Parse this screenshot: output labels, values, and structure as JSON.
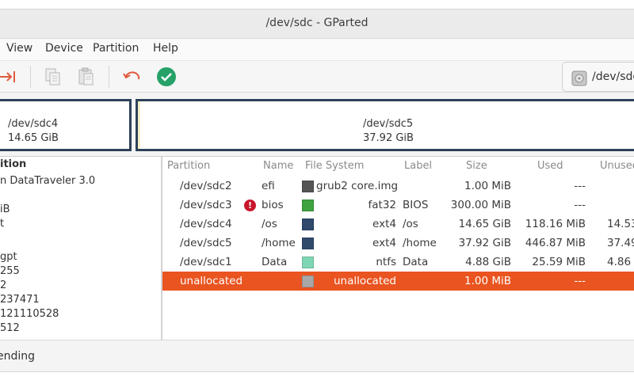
{
  "window": {
    "title": "/dev/sdc - GParted"
  },
  "menubar": {
    "items": [
      "View",
      "Device",
      "Partition",
      "Help"
    ]
  },
  "toolbar": {
    "icons": [
      "apply-arrow-icon",
      "copy-icon",
      "paste-icon",
      "undo-icon",
      "apply-check-icon"
    ],
    "colors": {
      "undo": "#e05a3c",
      "apply": "#26a269"
    },
    "device_selector": "/dev/sdc"
  },
  "disk_map": {
    "partitions": [
      {
        "name": "/dev/sdc4",
        "size": "14.65 GiB"
      },
      {
        "name": "/dev/sdc5",
        "size": "37.92 GiB"
      }
    ]
  },
  "device_info": {
    "rows": [
      "ition",
      "n DataTraveler 3.0",
      "",
      "iB",
      "t",
      "",
      "gpt",
      "255",
      "2",
      "237471",
      "121110528",
      "512"
    ]
  },
  "partition_table": {
    "columns": [
      "Partition",
      "Name",
      "File System",
      "Label",
      "Size",
      "Used",
      "Unused"
    ],
    "rows": [
      {
        "partition": "/dev/sdc2",
        "name": "efi",
        "swatch": "#555555",
        "fs": "grub2 core.img",
        "label": "",
        "size": "1.00 MiB",
        "used": "---",
        "unused": "",
        "warning": false
      },
      {
        "partition": "/dev/sdc3",
        "name": "bios",
        "swatch": "#3fa33f",
        "fs": "fat32",
        "label": "BIOS",
        "size": "300.00 MiB",
        "used": "---",
        "unused": "",
        "warning": true
      },
      {
        "partition": "/dev/sdc4",
        "name": "/os",
        "swatch": "#2f4a6b",
        "fs": "ext4",
        "label": "/os",
        "size": "14.65 GiB",
        "used": "118.16 MiB",
        "unused": "14.53",
        "warning": false
      },
      {
        "partition": "/dev/sdc5",
        "name": "/home",
        "swatch": "#2f4a6b",
        "fs": "ext4",
        "label": "/home",
        "size": "37.92 GiB",
        "used": "446.87 MiB",
        "unused": "37.49",
        "warning": false
      },
      {
        "partition": "/dev/sdc1",
        "name": "Data",
        "swatch": "#7fd6b4",
        "fs": "ntfs",
        "label": "Data",
        "size": "4.88 GiB",
        "used": "25.59 MiB",
        "unused": "4.86",
        "warning": false
      },
      {
        "partition": "unallocated",
        "name": "",
        "swatch": "#a8a8a8",
        "fs": "unallocated",
        "label": "",
        "size": "1.00 MiB",
        "used": "---",
        "unused": "",
        "warning": false,
        "selected": true
      }
    ]
  },
  "statusbar": {
    "text": "ending"
  },
  "colors": {
    "selection": "#e95420",
    "partition_border": "#2d4159"
  }
}
